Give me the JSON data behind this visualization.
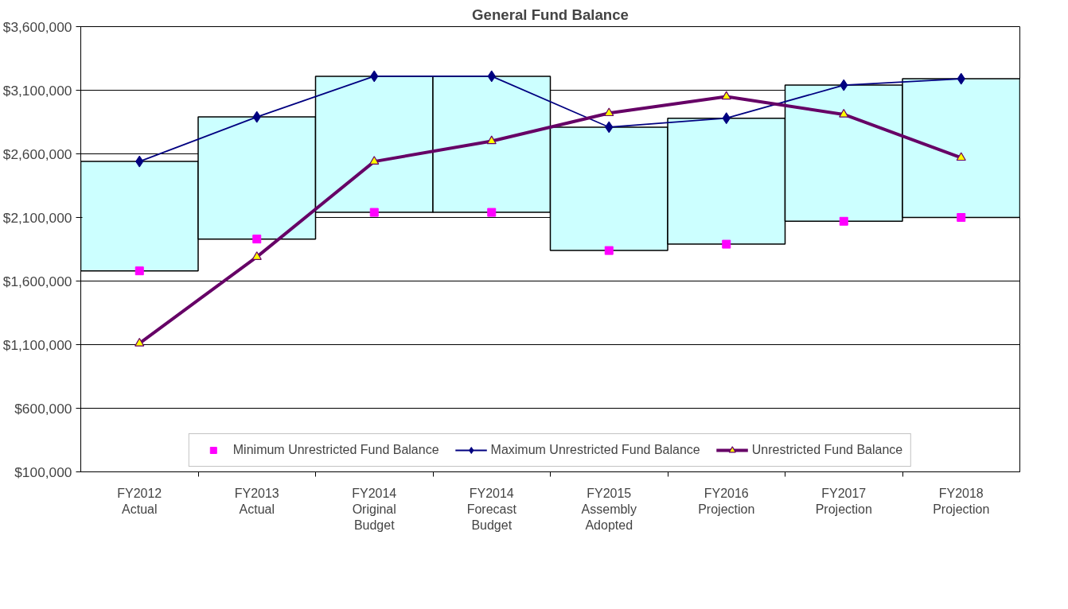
{
  "chart_data": {
    "type": "line",
    "title": "General Fund Balance",
    "categories": [
      "FY2012\nActual",
      "FY2013\nActual",
      "FY2014\nOriginal\nBudget",
      "FY2014\nForecast\nBudget",
      "FY2015\nAssembly\nAdopted",
      "FY2016\nProjection",
      "FY2017\nProjection",
      "FY2018\nProjection"
    ],
    "ylim": [
      100000,
      3600000
    ],
    "yticks": [
      {
        "value": 100000,
        "label": "$100,000"
      },
      {
        "value": 600000,
        "label": "$600,000"
      },
      {
        "value": 1100000,
        "label": "$1,100,000"
      },
      {
        "value": 1600000,
        "label": "$1,600,000"
      },
      {
        "value": 2100000,
        "label": "$2,100,000"
      },
      {
        "value": 2600000,
        "label": "$2,600,000"
      },
      {
        "value": 3100000,
        "label": "$3,100,000"
      },
      {
        "value": 3600000,
        "label": "$3,600,000"
      }
    ],
    "grid": "y",
    "legend": "bottom",
    "series": [
      {
        "type": "bar",
        "color": "#ccffff",
        "base": [
          1680000,
          1930000,
          2140000,
          2140000,
          1840000,
          1890000,
          2070000,
          2100000
        ],
        "values": [
          860000,
          960000,
          1070000,
          1070000,
          970000,
          990000,
          1070000,
          1090000
        ]
      },
      {
        "type": "scatter",
        "name": "Minimum Unrestricted Fund Balance",
        "color": "#ff00ff",
        "marker": "square",
        "values": [
          1680000,
          1930000,
          2140000,
          2140000,
          1840000,
          1890000,
          2070000,
          2100000
        ]
      },
      {
        "type": "line",
        "name": "Maximum Unrestricted Fund Balance",
        "color": "#000080",
        "marker": "diamond",
        "values": [
          2540000,
          2890000,
          3210000,
          3210000,
          2810000,
          2880000,
          3140000,
          3190000
        ]
      },
      {
        "name": "Unrestricted Fund Balance",
        "color": "#660066",
        "marker": "triangle",
        "values": [
          1110000,
          1790000,
          2540000,
          2700000,
          2920000,
          3050000,
          2910000,
          2570000
        ]
      }
    ]
  }
}
